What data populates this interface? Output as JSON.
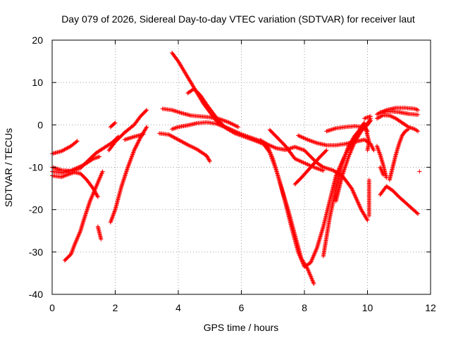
{
  "chart_data": {
    "type": "scatter",
    "title": "Day 079 of 2026, Sidereal Day-to-day VTEC variation (SDTVAR) for receiver laut",
    "xlabel": "GPS time / hours",
    "ylabel": "SDTVAR / TECUs",
    "xlim": [
      0,
      12
    ],
    "ylim": [
      -40,
      20
    ],
    "xticks": [
      0,
      2,
      4,
      6,
      8,
      10,
      12
    ],
    "yticks": [
      -40,
      -30,
      -20,
      -10,
      0,
      10,
      20
    ],
    "grid": true,
    "marker": "+",
    "color": "#ff0000",
    "series": [
      {
        "points": [
          [
            0.0,
            -6.8
          ],
          [
            0.3,
            -6.2
          ],
          [
            0.6,
            -5.0
          ],
          [
            0.8,
            -3.8
          ]
        ]
      },
      {
        "points": [
          [
            0.0,
            -10.0
          ],
          [
            0.3,
            -10.7
          ],
          [
            0.6,
            -10.9
          ],
          [
            0.9,
            -10.2
          ],
          [
            1.2,
            -8.0
          ],
          [
            1.4,
            -6.6
          ],
          [
            1.9,
            -4.2
          ],
          [
            2.1,
            -2.8
          ]
        ]
      },
      {
        "points": [
          [
            0.0,
            -11.0
          ],
          [
            0.3,
            -11.3
          ],
          [
            0.6,
            -10.8
          ],
          [
            0.9,
            -9.8
          ],
          [
            1.1,
            -9.0
          ],
          [
            1.3,
            -8.0
          ],
          [
            1.5,
            -7.5
          ]
        ]
      },
      {
        "points": [
          [
            0.0,
            -12.0
          ],
          [
            0.3,
            -12.3
          ],
          [
            0.5,
            -11.7
          ],
          [
            0.7,
            -11.2
          ],
          [
            0.9,
            -11.5
          ],
          [
            1.1,
            -13.0
          ],
          [
            1.3,
            -15.0
          ],
          [
            1.45,
            -17.0
          ]
        ]
      },
      {
        "points": [
          [
            0.4,
            -32.0
          ],
          [
            0.6,
            -30.5
          ],
          [
            0.7,
            -28.5
          ],
          [
            0.9,
            -25.0
          ],
          [
            1.0,
            -22.5
          ],
          [
            1.2,
            -18.0
          ],
          [
            1.4,
            -14.5
          ],
          [
            1.6,
            -11.0
          ]
        ]
      },
      {
        "points": [
          [
            1.45,
            -24.0
          ],
          [
            1.5,
            -25.5
          ],
          [
            1.55,
            -27.0
          ]
        ]
      },
      {
        "points": [
          [
            1.85,
            -23.0
          ],
          [
            2.0,
            -20.0
          ],
          [
            2.2,
            -14.5
          ],
          [
            2.4,
            -10.0
          ],
          [
            2.6,
            -6.0
          ],
          [
            2.8,
            -3.0
          ],
          [
            3.0,
            -0.5
          ]
        ]
      },
      {
        "points": [
          [
            1.8,
            -6.0
          ],
          [
            2.0,
            -4.0
          ],
          [
            2.3,
            -1.8
          ],
          [
            2.6,
            0.0
          ],
          [
            2.8,
            2.0
          ],
          [
            3.0,
            3.5
          ]
        ]
      },
      {
        "points": [
          [
            2.0,
            0.5
          ],
          [
            1.85,
            -0.5
          ]
        ]
      },
      {
        "points": [
          [
            2.3,
            -3.5
          ],
          [
            2.6,
            -2.8
          ],
          [
            2.9,
            -2.2
          ]
        ]
      },
      {
        "points": [
          [
            3.4,
            -2.0
          ],
          [
            3.7,
            -2.3
          ],
          [
            4.0,
            -3.5
          ],
          [
            4.3,
            -4.7
          ],
          [
            4.6,
            -5.8
          ],
          [
            4.9,
            -7.3
          ],
          [
            5.0,
            -8.6
          ]
        ]
      },
      {
        "points": [
          [
            3.5,
            3.8
          ],
          [
            3.8,
            3.5
          ],
          [
            4.1,
            2.8
          ],
          [
            4.4,
            2.2
          ],
          [
            4.7,
            2.0
          ],
          [
            5.0,
            1.8
          ],
          [
            5.3,
            1.4
          ],
          [
            5.6,
            0.6
          ],
          [
            5.9,
            -0.5
          ]
        ]
      },
      {
        "points": [
          [
            3.8,
            -1.0
          ],
          [
            4.0,
            -0.5
          ],
          [
            4.3,
            -0.1
          ],
          [
            4.6,
            0.4
          ],
          [
            4.9,
            0.6
          ],
          [
            5.2,
            0.3
          ],
          [
            5.5,
            -0.6
          ],
          [
            5.8,
            -1.8
          ],
          [
            6.2,
            -3.0
          ],
          [
            6.5,
            -3.8
          ],
          [
            6.8,
            -4.5
          ],
          [
            7.1,
            -5.5
          ],
          [
            7.4,
            -5.9
          ],
          [
            7.7,
            -5.2
          ],
          [
            8.0,
            -6.0
          ],
          [
            8.2,
            -7.5
          ],
          [
            8.4,
            -9.0
          ],
          [
            8.6,
            -10.0
          ],
          [
            8.9,
            -10.7
          ],
          [
            9.2,
            -12.0
          ],
          [
            9.5,
            -15.0
          ],
          [
            9.8,
            -20.0
          ],
          [
            10.0,
            -22.5
          ]
        ]
      },
      {
        "points": [
          [
            3.8,
            17.0
          ],
          [
            4.0,
            15.0
          ],
          [
            4.2,
            12.5
          ],
          [
            4.4,
            10.0
          ],
          [
            4.6,
            7.5
          ],
          [
            4.8,
            5.0
          ],
          [
            5.0,
            3.0
          ],
          [
            5.2,
            1.0
          ],
          [
            5.4,
            -0.2
          ],
          [
            5.7,
            -1.2
          ],
          [
            6.0,
            -2.2
          ],
          [
            6.3,
            -3.0
          ],
          [
            6.6,
            -3.8
          ]
        ]
      },
      {
        "points": [
          [
            4.3,
            7.5
          ],
          [
            4.5,
            8.5
          ],
          [
            4.7,
            7.0
          ],
          [
            4.9,
            4.8
          ],
          [
            5.1,
            2.8
          ],
          [
            5.3,
            0.8
          ],
          [
            5.5,
            -0.7
          ],
          [
            5.8,
            -2.0
          ],
          [
            6.1,
            -2.8
          ],
          [
            6.4,
            -3.6
          ],
          [
            6.7,
            -4.5
          ],
          [
            6.9,
            -6.5
          ],
          [
            7.1,
            -10.5
          ],
          [
            7.3,
            -15.5
          ],
          [
            7.5,
            -20.5
          ],
          [
            7.7,
            -26.0
          ],
          [
            7.9,
            -31.5
          ],
          [
            8.1,
            -34.0
          ],
          [
            8.3,
            -37.5
          ]
        ]
      },
      {
        "points": [
          [
            6.9,
            -1.2
          ],
          [
            7.1,
            -2.7
          ],
          [
            7.4,
            -5.0
          ],
          [
            7.7,
            -8.0
          ],
          [
            8.0,
            -9.0
          ],
          [
            8.3,
            -10.0
          ],
          [
            8.6,
            -10.8
          ]
        ]
      },
      {
        "points": [
          [
            6.6,
            -3.6
          ],
          [
            6.8,
            -4.5
          ],
          [
            7.0,
            -8.0
          ],
          [
            7.2,
            -13.0
          ],
          [
            7.4,
            -18.5
          ],
          [
            7.6,
            -24.5
          ],
          [
            7.8,
            -30.0
          ],
          [
            8.0,
            -33.5
          ],
          [
            8.2,
            -32.5
          ],
          [
            8.4,
            -29.0
          ],
          [
            8.6,
            -24.0
          ],
          [
            8.8,
            -18.0
          ],
          [
            9.0,
            -12.0
          ],
          [
            9.3,
            -7.0
          ],
          [
            9.6,
            -3.0
          ],
          [
            9.8,
            -0.5
          ],
          [
            9.9,
            0.5
          ]
        ]
      },
      {
        "points": [
          [
            7.7,
            -14.0
          ],
          [
            7.9,
            -12.5
          ],
          [
            8.2,
            -10.0
          ],
          [
            8.5,
            -7.5
          ],
          [
            8.7,
            -6.0
          ]
        ]
      },
      {
        "points": [
          [
            7.8,
            -2.5
          ],
          [
            8.1,
            -3.5
          ],
          [
            8.4,
            -4.3
          ],
          [
            8.7,
            -4.8
          ],
          [
            9.0,
            -4.8
          ],
          [
            9.3,
            -4.5
          ],
          [
            9.6,
            -4.0
          ],
          [
            9.9,
            -3.5
          ],
          [
            10.1,
            -4.5
          ],
          [
            10.2,
            -6.0
          ]
        ]
      },
      {
        "points": [
          [
            9.0,
            -18.0
          ],
          [
            9.2,
            -12.0
          ],
          [
            9.4,
            -7.5
          ],
          [
            9.6,
            -4.0
          ],
          [
            9.8,
            -1.5
          ],
          [
            10.0,
            0.0
          ],
          [
            10.1,
            1.0
          ]
        ]
      },
      {
        "points": [
          [
            8.6,
            -31.0
          ],
          [
            8.8,
            -22.0
          ],
          [
            9.0,
            -15.0
          ],
          [
            9.2,
            -9.0
          ],
          [
            9.4,
            -5.0
          ],
          [
            9.6,
            -2.5
          ],
          [
            9.8,
            -0.8
          ],
          [
            10.0,
            0.3
          ],
          [
            10.1,
            1.5
          ]
        ]
      },
      {
        "points": [
          [
            8.7,
            -1.5
          ],
          [
            9.0,
            -0.8
          ],
          [
            9.3,
            -0.5
          ],
          [
            9.6,
            -0.3
          ],
          [
            9.9,
            -0.5
          ],
          [
            10.0,
            -1.5
          ]
        ]
      },
      {
        "points": [
          [
            9.9,
            -0.5
          ],
          [
            9.95,
            -0.8
          ],
          [
            10.0,
            -2.5
          ],
          [
            10.05,
            -4.0
          ],
          [
            10.0,
            -6.0
          ]
        ]
      },
      {
        "points": [
          [
            9.9,
            1.5
          ],
          [
            10.0,
            1.8
          ],
          [
            10.1,
            2.0
          ]
        ]
      },
      {
        "points": [
          [
            10.05,
            -13.0
          ],
          [
            10.05,
            -16.0
          ],
          [
            10.05,
            -19.0
          ],
          [
            10.05,
            -21.5
          ]
        ]
      },
      {
        "points": [
          [
            10.3,
            -5.0
          ],
          [
            10.4,
            -7.0
          ],
          [
            10.5,
            -9.5
          ],
          [
            10.6,
            -12.5
          ]
        ]
      },
      {
        "points": [
          [
            10.4,
            -10.0
          ],
          [
            10.45,
            -10.8
          ],
          [
            10.5,
            -11.8
          ]
        ]
      },
      {
        "points": [
          [
            10.4,
            -16.5
          ],
          [
            10.6,
            -14.5
          ],
          [
            10.8,
            -15.5
          ],
          [
            11.0,
            -17.0
          ],
          [
            11.3,
            -19.0
          ],
          [
            11.6,
            -21.0
          ]
        ]
      },
      {
        "points": [
          [
            10.7,
            -13.0
          ],
          [
            10.8,
            -10.0
          ],
          [
            10.9,
            -7.0
          ],
          [
            11.0,
            -4.5
          ],
          [
            11.1,
            -2.5
          ],
          [
            11.2,
            -1.5
          ],
          [
            11.3,
            -1.0
          ]
        ]
      },
      {
        "points": [
          [
            10.3,
            2.5
          ],
          [
            10.6,
            3.5
          ],
          [
            10.9,
            4.0
          ],
          [
            11.2,
            4.0
          ],
          [
            11.5,
            3.8
          ],
          [
            11.6,
            3.5
          ]
        ]
      },
      {
        "points": [
          [
            10.3,
            1.5
          ],
          [
            10.5,
            2.3
          ],
          [
            10.7,
            2.2
          ],
          [
            10.9,
            1.5
          ],
          [
            11.1,
            0.5
          ],
          [
            11.3,
            -0.5
          ],
          [
            11.5,
            -1.0
          ],
          [
            11.6,
            -1.5
          ]
        ]
      },
      {
        "points": [
          [
            10.4,
            3.0
          ],
          [
            10.7,
            3.2
          ],
          [
            11.0,
            3.0
          ],
          [
            11.3,
            2.6
          ],
          [
            11.6,
            2.4
          ]
        ]
      },
      {
        "points": [
          [
            11.65,
            -11.0
          ]
        ]
      }
    ]
  }
}
